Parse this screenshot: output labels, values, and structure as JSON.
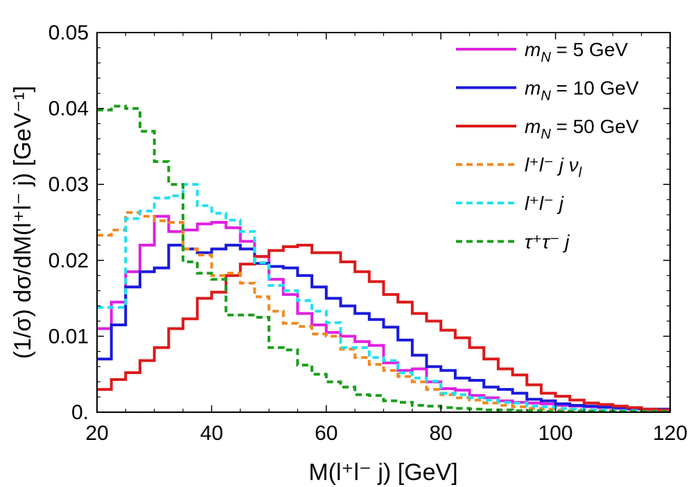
{
  "chart_data": {
    "type": "line",
    "subtype": "step-histogram",
    "title": "",
    "xlabel": "M(l⁺l⁻ j) [GeV]",
    "ylabel": "(1/σ) dσ/dM(l⁺l⁻ j) [GeV⁻¹]",
    "xlim": [
      20,
      120
    ],
    "ylim": [
      0,
      0.05
    ],
    "x_ticks": [
      "20",
      "40",
      "60",
      "80",
      "100",
      "120"
    ],
    "y_ticks": [
      "0.",
      "0.01",
      "0.02",
      "0.03",
      "0.04",
      "0.05"
    ],
    "bin_edges": [
      20,
      22.5,
      25,
      27.5,
      30,
      32.5,
      35,
      37.5,
      40,
      42.5,
      45,
      47.5,
      50,
      52.5,
      55,
      57.5,
      60,
      62.5,
      65,
      67.5,
      70,
      72.5,
      75,
      77.5,
      80,
      82.5,
      85,
      87.5,
      90,
      92.5,
      95,
      97.5,
      100,
      102.5,
      105,
      107.5,
      110,
      112.5,
      115,
      117.5,
      120
    ],
    "legend_position": "top-right",
    "series": [
      {
        "name": "m_N = 5 GeV",
        "color": "#e020e0",
        "dash": "solid",
        "values": [
          0.011,
          0.0145,
          0.0185,
          0.022,
          0.0258,
          0.0238,
          0.024,
          0.0248,
          0.025,
          0.0243,
          0.0225,
          0.0205,
          0.0175,
          0.0155,
          0.013,
          0.0115,
          0.0105,
          0.01,
          0.0093,
          0.0088,
          0.0065,
          0.0055,
          0.0057,
          0.004,
          0.0031,
          0.0029,
          0.0022,
          0.0019,
          0.0015,
          0.0013,
          0.0012,
          0.0011,
          0.0009,
          0.0008,
          0.0007,
          0.0006,
          0.0005,
          0.0004,
          0.0003,
          0.0003
        ]
      },
      {
        "name": "m_N = 10 GeV",
        "color": "#1a1adc",
        "dash": "solid",
        "values": [
          0.007,
          0.0115,
          0.0165,
          0.0185,
          0.019,
          0.022,
          0.0215,
          0.021,
          0.0215,
          0.022,
          0.0215,
          0.0196,
          0.0192,
          0.019,
          0.018,
          0.0165,
          0.015,
          0.014,
          0.013,
          0.0122,
          0.0112,
          0.0095,
          0.0075,
          0.006,
          0.0055,
          0.0045,
          0.0042,
          0.0033,
          0.003,
          0.0025,
          0.0017,
          0.0015,
          0.0011,
          0.0009,
          0.0008,
          0.0007,
          0.0006,
          0.0005,
          0.0004,
          0.0004
        ]
      },
      {
        "name": "m_N = 50 GeV",
        "color": "#dc1a1a",
        "dash": "solid",
        "values": [
          0.003,
          0.0043,
          0.0052,
          0.0068,
          0.0085,
          0.011,
          0.0123,
          0.015,
          0.0158,
          0.018,
          0.0195,
          0.0205,
          0.0213,
          0.0218,
          0.022,
          0.021,
          0.021,
          0.0198,
          0.0185,
          0.0172,
          0.0155,
          0.0145,
          0.013,
          0.012,
          0.0108,
          0.0098,
          0.0085,
          0.007,
          0.0057,
          0.0049,
          0.0036,
          0.0025,
          0.0021,
          0.0016,
          0.0012,
          0.001,
          0.0008,
          0.0006,
          0.0004,
          0.0003
        ]
      },
      {
        "name": "l⁺l⁻ j ν_l",
        "color": "#f08a20",
        "dash": "dashed",
        "values": [
          0.0233,
          0.024,
          0.0263,
          0.0258,
          0.0252,
          0.025,
          0.0215,
          0.0207,
          0.018,
          0.0183,
          0.017,
          0.0152,
          0.0133,
          0.0117,
          0.0113,
          0.0103,
          0.01,
          0.0083,
          0.0072,
          0.0063,
          0.0055,
          0.0047,
          0.004,
          0.003,
          0.0023,
          0.0019,
          0.0016,
          0.0012,
          0.0009,
          0.0007,
          0.0005,
          0.0004,
          0.0003,
          0.0003,
          0.0002,
          0.0002,
          0.0001,
          0.0001,
          0.0001,
          0.0001
        ]
      },
      {
        "name": "l⁺l⁻ j",
        "color": "#20e0f0",
        "dash": "dashed",
        "values": [
          0.0138,
          0.0138,
          0.0255,
          0.0265,
          0.0282,
          0.0285,
          0.03,
          0.0272,
          0.0262,
          0.0253,
          0.0238,
          0.0197,
          0.0167,
          0.016,
          0.0147,
          0.0133,
          0.0118,
          0.0085,
          0.0085,
          0.0072,
          0.0068,
          0.0052,
          0.0045,
          0.0041,
          0.0025,
          0.0023,
          0.0019,
          0.0016,
          0.0013,
          0.0012,
          0.0008,
          0.0007,
          0.0005,
          0.0004,
          0.0003,
          0.0003,
          0.0002,
          0.0002,
          0.0001,
          0.0001
        ]
      },
      {
        "name": "τ⁺τ⁻ j",
        "color": "#1a9e1a",
        "dash": "dashed",
        "values": [
          0.0398,
          0.0403,
          0.04,
          0.037,
          0.033,
          0.03,
          0.0198,
          0.0183,
          0.0175,
          0.0128,
          0.0128,
          0.0125,
          0.0085,
          0.0082,
          0.0062,
          0.005,
          0.004,
          0.0033,
          0.0023,
          0.0022,
          0.0015,
          0.0013,
          0.0009,
          0.0008,
          0.0006,
          0.0005,
          0.0004,
          0.0003,
          0.0003,
          0.0002,
          0.0002,
          0.0001,
          0.0001,
          0.0001,
          0.0001,
          0.0001,
          0.0001,
          0.0001,
          0.0001,
          0.0001
        ]
      }
    ]
  },
  "legend": {
    "items": [
      {
        "base": "m",
        "sub": "N",
        "rest": " = 5 GeV"
      },
      {
        "base": "m",
        "sub": "N",
        "rest": " = 10 GeV"
      },
      {
        "base": "m",
        "sub": "N",
        "rest": " = 50 GeV"
      },
      {
        "base": "l⁺l⁻ j ν",
        "sub": "l",
        "rest": ""
      },
      {
        "base": "l⁺l⁻ j",
        "sub": "",
        "rest": ""
      },
      {
        "base": "τ⁺τ⁻ j",
        "sub": "",
        "rest": ""
      }
    ]
  }
}
